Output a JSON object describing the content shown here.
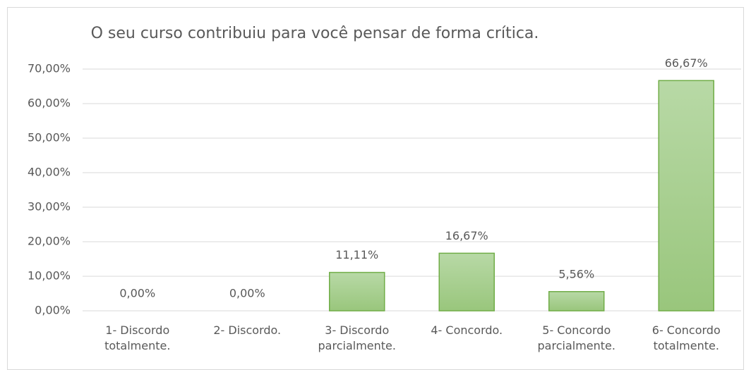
{
  "chart_data": {
    "type": "bar",
    "title": "O seu curso contribuiu para você pensar de forma crítica.",
    "categories": [
      "1- Discordo totalmente.",
      "2- Discordo.",
      "3- Discordo parcialmente.",
      "4- Concordo.",
      "5- Concordo parcialmente.",
      "6- Concordo totalmente."
    ],
    "values": [
      0,
      0,
      11.11,
      16.67,
      5.56,
      66.67
    ],
    "value_labels": [
      "0,00%",
      "0,00%",
      "11,11%",
      "16,67%",
      "5,56%",
      "66,67%"
    ],
    "color": "#a9d08e",
    "ylim": [
      0,
      70
    ],
    "yticks": [
      {
        "value": 0,
        "label": "0,00%"
      },
      {
        "value": 10,
        "label": "10,00%"
      },
      {
        "value": 20,
        "label": "20,00%"
      },
      {
        "value": 30,
        "label": "30,00%"
      },
      {
        "value": 40,
        "label": "40,00%"
      },
      {
        "value": 50,
        "label": "50,00%"
      },
      {
        "value": 60,
        "label": "60,00%"
      },
      {
        "value": 70,
        "label": "70,00%"
      }
    ],
    "grid": true
  }
}
